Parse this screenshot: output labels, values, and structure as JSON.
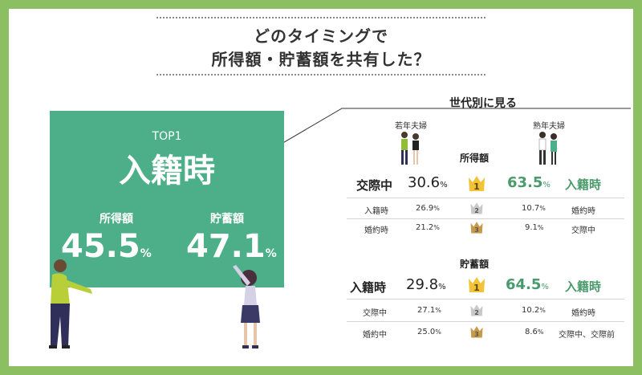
{
  "title": {
    "line1": "どのタイミングで",
    "line2": "所得額・貯蓄額を共有した？"
  },
  "top_card": {
    "rank": "TOP1",
    "timing": "入籍時",
    "income_label": "所得額",
    "income_value": "45.5",
    "savings_label": "貯蓄額",
    "savings_value": "47.1",
    "unit": "%"
  },
  "generation": {
    "heading": "世代別に見る",
    "young_label": "若年夫婦",
    "mature_label": "熟年夫婦"
  },
  "income_section": {
    "heading": "所得額",
    "rows": [
      {
        "rank": "1",
        "young_label": "交際中",
        "young_value": "30.6",
        "mature_value": "63.5",
        "mature_label": "入籍時"
      },
      {
        "rank": "2",
        "young_label": "入籍時",
        "young_value": "26.9",
        "mature_value": "10.7",
        "mature_label": "婚約時"
      },
      {
        "rank": "3",
        "young_label": "婚約時",
        "young_value": "21.2",
        "mature_value": "9.1",
        "mature_label": "交際中"
      }
    ]
  },
  "savings_section": {
    "heading": "貯蓄額",
    "rows": [
      {
        "rank": "1",
        "young_label": "入籍時",
        "young_value": "29.8",
        "mature_value": "64.5",
        "mature_label": "入籍時"
      },
      {
        "rank": "2",
        "young_label": "交際中",
        "young_value": "27.1",
        "mature_value": "10.2",
        "mature_label": "婚約時"
      },
      {
        "rank": "3",
        "young_label": "婚約中",
        "young_value": "25.0",
        "mature_value": "8.6",
        "mature_label": "交際中、交際前"
      }
    ]
  },
  "unit": "%",
  "colors": {
    "frame": "#8bbf62",
    "card": "#4daf8a",
    "accent_green": "#4a9b6c",
    "gold": "#f2c335",
    "silver": "#c9c9c9",
    "bronze": "#c79a4b"
  }
}
